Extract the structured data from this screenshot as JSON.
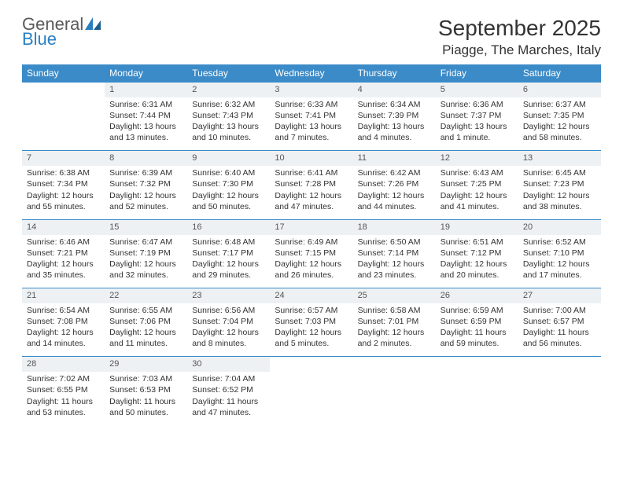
{
  "logo": {
    "text1": "General",
    "text2": "Blue"
  },
  "title": "September 2025",
  "location": "Piagge, The Marches, Italy",
  "colors": {
    "header_bg": "#3b8bc8",
    "header_text": "#ffffff",
    "row_divider": "#3b8bc8",
    "daynum_bg": "#eef1f3",
    "text": "#333333",
    "logo_gray": "#5a5a5a",
    "logo_blue": "#2a7fbf"
  },
  "weekdays": [
    "Sunday",
    "Monday",
    "Tuesday",
    "Wednesday",
    "Thursday",
    "Friday",
    "Saturday"
  ],
  "weeks": [
    {
      "nums": [
        "",
        "1",
        "2",
        "3",
        "4",
        "5",
        "6"
      ],
      "cells": [
        null,
        {
          "sunrise": "Sunrise: 6:31 AM",
          "sunset": "Sunset: 7:44 PM",
          "day1": "Daylight: 13 hours",
          "day2": "and 13 minutes."
        },
        {
          "sunrise": "Sunrise: 6:32 AM",
          "sunset": "Sunset: 7:43 PM",
          "day1": "Daylight: 13 hours",
          "day2": "and 10 minutes."
        },
        {
          "sunrise": "Sunrise: 6:33 AM",
          "sunset": "Sunset: 7:41 PM",
          "day1": "Daylight: 13 hours",
          "day2": "and 7 minutes."
        },
        {
          "sunrise": "Sunrise: 6:34 AM",
          "sunset": "Sunset: 7:39 PM",
          "day1": "Daylight: 13 hours",
          "day2": "and 4 minutes."
        },
        {
          "sunrise": "Sunrise: 6:36 AM",
          "sunset": "Sunset: 7:37 PM",
          "day1": "Daylight: 13 hours",
          "day2": "and 1 minute."
        },
        {
          "sunrise": "Sunrise: 6:37 AM",
          "sunset": "Sunset: 7:35 PM",
          "day1": "Daylight: 12 hours",
          "day2": "and 58 minutes."
        }
      ]
    },
    {
      "nums": [
        "7",
        "8",
        "9",
        "10",
        "11",
        "12",
        "13"
      ],
      "cells": [
        {
          "sunrise": "Sunrise: 6:38 AM",
          "sunset": "Sunset: 7:34 PM",
          "day1": "Daylight: 12 hours",
          "day2": "and 55 minutes."
        },
        {
          "sunrise": "Sunrise: 6:39 AM",
          "sunset": "Sunset: 7:32 PM",
          "day1": "Daylight: 12 hours",
          "day2": "and 52 minutes."
        },
        {
          "sunrise": "Sunrise: 6:40 AM",
          "sunset": "Sunset: 7:30 PM",
          "day1": "Daylight: 12 hours",
          "day2": "and 50 minutes."
        },
        {
          "sunrise": "Sunrise: 6:41 AM",
          "sunset": "Sunset: 7:28 PM",
          "day1": "Daylight: 12 hours",
          "day2": "and 47 minutes."
        },
        {
          "sunrise": "Sunrise: 6:42 AM",
          "sunset": "Sunset: 7:26 PM",
          "day1": "Daylight: 12 hours",
          "day2": "and 44 minutes."
        },
        {
          "sunrise": "Sunrise: 6:43 AM",
          "sunset": "Sunset: 7:25 PM",
          "day1": "Daylight: 12 hours",
          "day2": "and 41 minutes."
        },
        {
          "sunrise": "Sunrise: 6:45 AM",
          "sunset": "Sunset: 7:23 PM",
          "day1": "Daylight: 12 hours",
          "day2": "and 38 minutes."
        }
      ]
    },
    {
      "nums": [
        "14",
        "15",
        "16",
        "17",
        "18",
        "19",
        "20"
      ],
      "cells": [
        {
          "sunrise": "Sunrise: 6:46 AM",
          "sunset": "Sunset: 7:21 PM",
          "day1": "Daylight: 12 hours",
          "day2": "and 35 minutes."
        },
        {
          "sunrise": "Sunrise: 6:47 AM",
          "sunset": "Sunset: 7:19 PM",
          "day1": "Daylight: 12 hours",
          "day2": "and 32 minutes."
        },
        {
          "sunrise": "Sunrise: 6:48 AM",
          "sunset": "Sunset: 7:17 PM",
          "day1": "Daylight: 12 hours",
          "day2": "and 29 minutes."
        },
        {
          "sunrise": "Sunrise: 6:49 AM",
          "sunset": "Sunset: 7:15 PM",
          "day1": "Daylight: 12 hours",
          "day2": "and 26 minutes."
        },
        {
          "sunrise": "Sunrise: 6:50 AM",
          "sunset": "Sunset: 7:14 PM",
          "day1": "Daylight: 12 hours",
          "day2": "and 23 minutes."
        },
        {
          "sunrise": "Sunrise: 6:51 AM",
          "sunset": "Sunset: 7:12 PM",
          "day1": "Daylight: 12 hours",
          "day2": "and 20 minutes."
        },
        {
          "sunrise": "Sunrise: 6:52 AM",
          "sunset": "Sunset: 7:10 PM",
          "day1": "Daylight: 12 hours",
          "day2": "and 17 minutes."
        }
      ]
    },
    {
      "nums": [
        "21",
        "22",
        "23",
        "24",
        "25",
        "26",
        "27"
      ],
      "cells": [
        {
          "sunrise": "Sunrise: 6:54 AM",
          "sunset": "Sunset: 7:08 PM",
          "day1": "Daylight: 12 hours",
          "day2": "and 14 minutes."
        },
        {
          "sunrise": "Sunrise: 6:55 AM",
          "sunset": "Sunset: 7:06 PM",
          "day1": "Daylight: 12 hours",
          "day2": "and 11 minutes."
        },
        {
          "sunrise": "Sunrise: 6:56 AM",
          "sunset": "Sunset: 7:04 PM",
          "day1": "Daylight: 12 hours",
          "day2": "and 8 minutes."
        },
        {
          "sunrise": "Sunrise: 6:57 AM",
          "sunset": "Sunset: 7:03 PM",
          "day1": "Daylight: 12 hours",
          "day2": "and 5 minutes."
        },
        {
          "sunrise": "Sunrise: 6:58 AM",
          "sunset": "Sunset: 7:01 PM",
          "day1": "Daylight: 12 hours",
          "day2": "and 2 minutes."
        },
        {
          "sunrise": "Sunrise: 6:59 AM",
          "sunset": "Sunset: 6:59 PM",
          "day1": "Daylight: 11 hours",
          "day2": "and 59 minutes."
        },
        {
          "sunrise": "Sunrise: 7:00 AM",
          "sunset": "Sunset: 6:57 PM",
          "day1": "Daylight: 11 hours",
          "day2": "and 56 minutes."
        }
      ]
    },
    {
      "nums": [
        "28",
        "29",
        "30",
        "",
        "",
        "",
        ""
      ],
      "cells": [
        {
          "sunrise": "Sunrise: 7:02 AM",
          "sunset": "Sunset: 6:55 PM",
          "day1": "Daylight: 11 hours",
          "day2": "and 53 minutes."
        },
        {
          "sunrise": "Sunrise: 7:03 AM",
          "sunset": "Sunset: 6:53 PM",
          "day1": "Daylight: 11 hours",
          "day2": "and 50 minutes."
        },
        {
          "sunrise": "Sunrise: 7:04 AM",
          "sunset": "Sunset: 6:52 PM",
          "day1": "Daylight: 11 hours",
          "day2": "and 47 minutes."
        },
        null,
        null,
        null,
        null
      ]
    }
  ]
}
